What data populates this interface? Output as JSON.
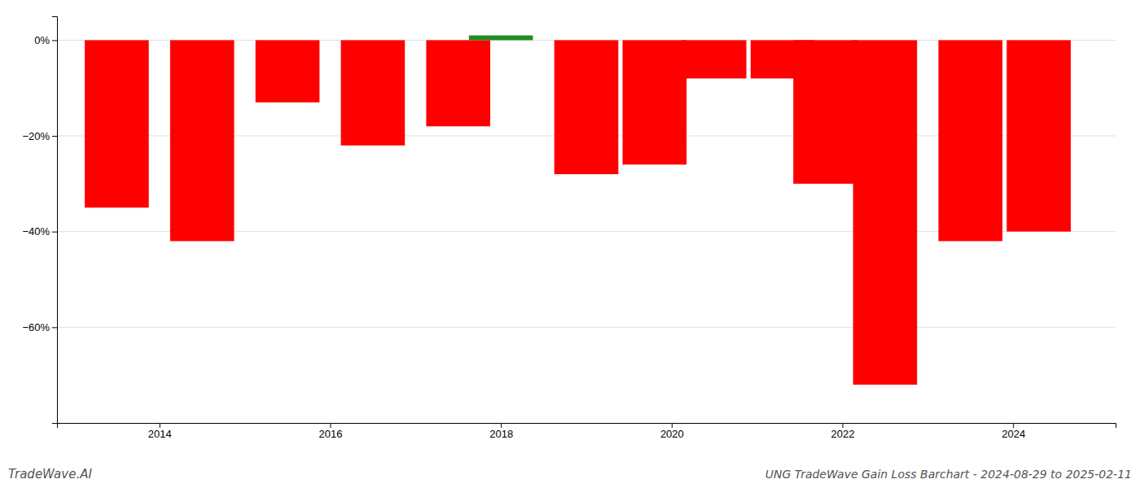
{
  "chart_data": {
    "type": "bar",
    "title": "UNG TradeWave Gain Loss Barchart - 2024-08-29 to 2025-02-11",
    "annotations": [
      "TradeWave.AI"
    ],
    "x": [
      2013.5,
      2014.5,
      2015.5,
      2016.5,
      2017.5,
      2018.0,
      2019.0,
      2019.8,
      2020.5,
      2021.3,
      2021.8,
      2022.5,
      2023.5,
      2024.3
    ],
    "values": [
      -35.0,
      -42.0,
      -13.0,
      -22.0,
      -18.0,
      1.0,
      -28.0,
      -26.0,
      -8.0,
      -8.0,
      -30.0,
      -72.0,
      -42.0,
      -40.0
    ],
    "colors": [
      "#ff0000",
      "#ff0000",
      "#ff0000",
      "#ff0000",
      "#ff0000",
      "#228B22",
      "#ff0000",
      "#ff0000",
      "#ff0000",
      "#ff0000",
      "#ff0000",
      "#ff0000",
      "#ff0000",
      "#ff0000"
    ],
    "xlim": [
      2012.8,
      2025.2
    ],
    "xticks": [
      2014,
      2016,
      2018,
      2020,
      2022,
      2024
    ],
    "ylim": [
      -80,
      5
    ],
    "yticks": [
      {
        "value": 0,
        "label": "0%"
      },
      {
        "value": -20,
        "label": "−20%"
      },
      {
        "value": -40,
        "label": "−40%"
      },
      {
        "value": -60,
        "label": "−60%"
      }
    ],
    "grid": true
  }
}
